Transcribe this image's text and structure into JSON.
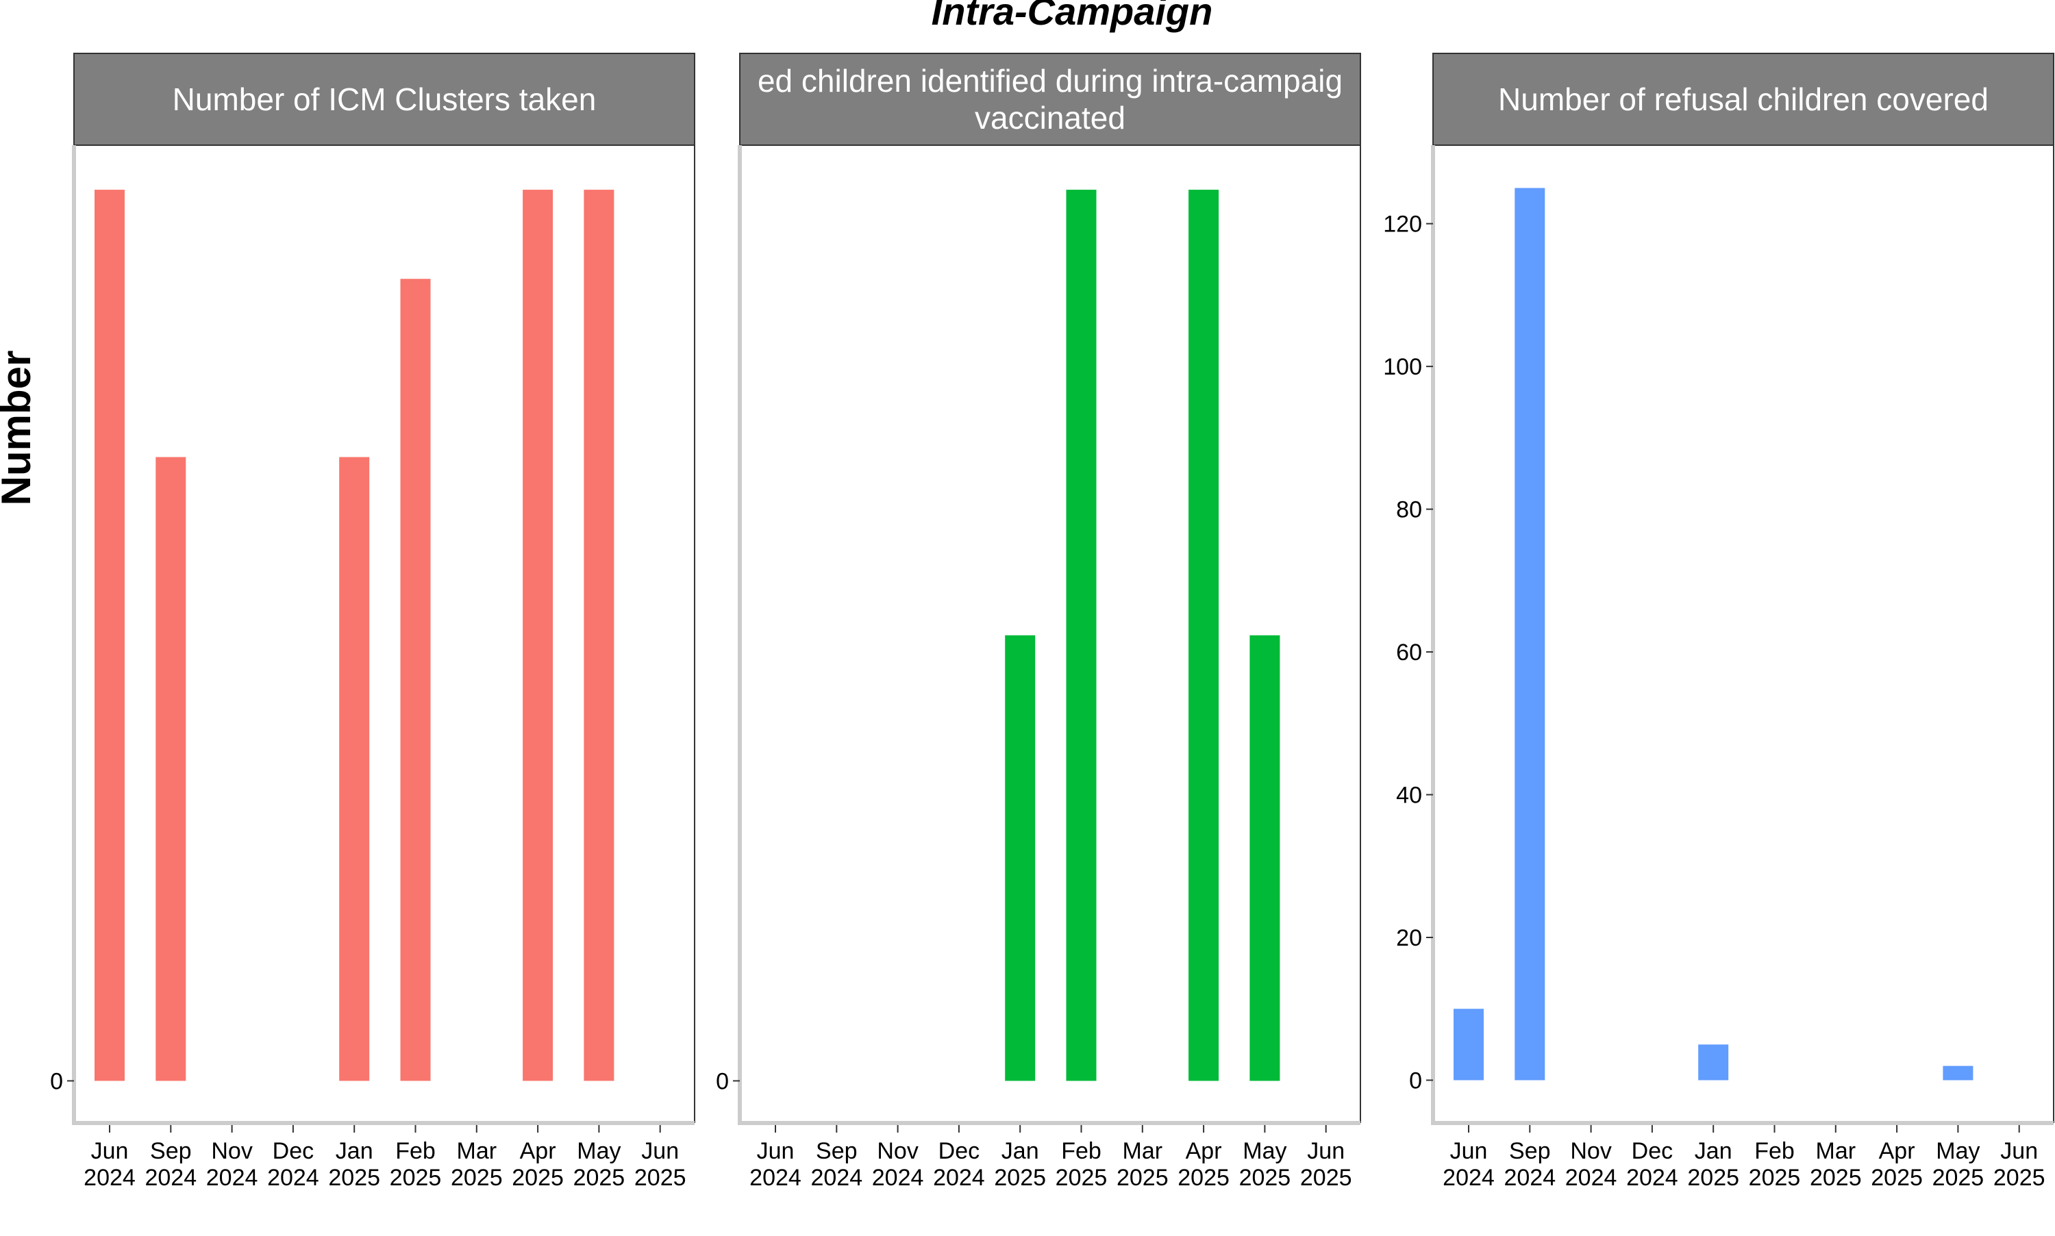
{
  "chart_data": {
    "type": "bar",
    "title": "Intra-Campaign",
    "ylabel": "Number",
    "x_tick_labels": [
      [
        "Jun",
        "2024"
      ],
      [
        "Sep",
        "2024"
      ],
      [
        "Nov",
        "2024"
      ],
      [
        "Dec",
        "2024"
      ],
      [
        "Jan",
        "2025"
      ],
      [
        "Feb",
        "2025"
      ],
      [
        "Mar",
        "2025"
      ],
      [
        "Apr",
        "2025"
      ],
      [
        "May",
        "2025"
      ],
      [
        "Jun",
        "2025"
      ]
    ],
    "grid": false,
    "legend": "none",
    "panels": [
      {
        "strip_lines": [
          "Number of ICM Clusters taken"
        ],
        "color": "#F8766D",
        "y_ticks": [
          0
        ],
        "ylim": [
          -0.0473,
          1.05
        ],
        "values": [
          1,
          0.7,
          0,
          0,
          0.7,
          0.9,
          0,
          1,
          1,
          0
        ]
      },
      {
        "strip_lines": [
          "ed children identified during intra-campaig",
          "vaccinated"
        ],
        "color": "#00BA38",
        "y_ticks": [
          0
        ],
        "ylim": [
          -0.0473,
          1.05
        ],
        "values": [
          0,
          0,
          0,
          0,
          0.5,
          1,
          0,
          1,
          0.5,
          0
        ]
      },
      {
        "strip_lines": [
          "Number of refusal children covered"
        ],
        "color": "#619CFF",
        "y_ticks": [
          0,
          20,
          40,
          60,
          80,
          100,
          120
        ],
        "ylim": [
          -6,
          131
        ],
        "values": [
          10,
          125,
          0,
          0,
          5,
          0,
          0,
          0,
          2,
          0
        ]
      }
    ]
  }
}
